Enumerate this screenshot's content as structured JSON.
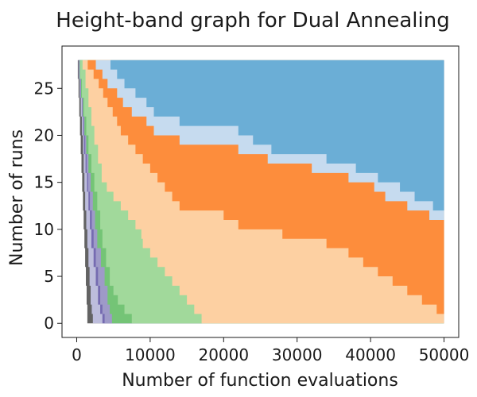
{
  "chart_data": {
    "type": "area",
    "title": "Height-band graph for Dual Annealing",
    "xlabel": "Number of function evaluations",
    "ylabel": "Number of runs",
    "xlim": [
      -2000,
      52000
    ],
    "ylim": [
      -1.5,
      29.5
    ],
    "xticks": [
      0,
      10000,
      20000,
      30000,
      40000,
      50000
    ],
    "yticks": [
      0,
      5,
      10,
      15,
      20,
      25
    ],
    "grid": false,
    "legend": "none",
    "bands": [
      {
        "color": "#636363",
        "boundary": [
          [
            0,
            28
          ],
          [
            150,
            26
          ],
          [
            250,
            24
          ],
          [
            350,
            22
          ],
          [
            450,
            20
          ],
          [
            550,
            18
          ],
          [
            650,
            16
          ],
          [
            750,
            14
          ],
          [
            850,
            12
          ],
          [
            950,
            10
          ],
          [
            1050,
            8
          ],
          [
            1150,
            6
          ],
          [
            1250,
            4
          ],
          [
            1350,
            2
          ],
          [
            1450,
            0
          ]
        ]
      },
      {
        "color": "#bdbddc",
        "boundary": [
          [
            0,
            28
          ],
          [
            250,
            26
          ],
          [
            400,
            24
          ],
          [
            550,
            22
          ],
          [
            700,
            20
          ],
          [
            850,
            18
          ],
          [
            950,
            16
          ],
          [
            1050,
            14
          ],
          [
            1150,
            12
          ],
          [
            1300,
            10
          ],
          [
            1450,
            8
          ],
          [
            1600,
            6
          ],
          [
            1750,
            4
          ],
          [
            1900,
            2
          ],
          [
            2050,
            1
          ],
          [
            2200,
            0
          ]
        ]
      },
      {
        "color": "#756bb1",
        "boundary": [
          [
            0,
            28
          ],
          [
            300,
            26
          ],
          [
            500,
            24
          ],
          [
            700,
            22
          ],
          [
            850,
            20
          ],
          [
            1000,
            18
          ],
          [
            1200,
            16
          ],
          [
            1400,
            14
          ],
          [
            1600,
            12
          ],
          [
            1800,
            10
          ],
          [
            2000,
            8
          ],
          [
            2300,
            6
          ],
          [
            2600,
            4
          ],
          [
            2900,
            2
          ],
          [
            3200,
            1
          ],
          [
            3500,
            0
          ]
        ]
      },
      {
        "color": "#9e9ac8",
        "boundary": [
          [
            0,
            28
          ],
          [
            350,
            26
          ],
          [
            550,
            24
          ],
          [
            750,
            22
          ],
          [
            950,
            20
          ],
          [
            1150,
            18
          ],
          [
            1350,
            16
          ],
          [
            1550,
            14
          ],
          [
            1800,
            12
          ],
          [
            2050,
            10
          ],
          [
            2300,
            8
          ],
          [
            2600,
            6
          ],
          [
            2900,
            4
          ],
          [
            3200,
            2
          ],
          [
            3500,
            1
          ],
          [
            3800,
            0
          ]
        ]
      },
      {
        "color": "#74c476",
        "boundary": [
          [
            0,
            28
          ],
          [
            400,
            26
          ],
          [
            600,
            24
          ],
          [
            850,
            22
          ],
          [
            1050,
            20
          ],
          [
            1300,
            18
          ],
          [
            1600,
            16
          ],
          [
            1900,
            14
          ],
          [
            2200,
            12
          ],
          [
            2500,
            10
          ],
          [
            2800,
            8
          ],
          [
            3300,
            6
          ],
          [
            3800,
            4
          ],
          [
            4200,
            2
          ],
          [
            4500,
            1
          ],
          [
            4800,
            0
          ]
        ]
      },
      {
        "color": "#a1d99b",
        "boundary": [
          [
            0,
            28
          ],
          [
            450,
            26
          ],
          [
            700,
            24
          ],
          [
            1000,
            22
          ],
          [
            1300,
            20
          ],
          [
            1600,
            18
          ],
          [
            2000,
            16
          ],
          [
            2400,
            14
          ],
          [
            2800,
            12
          ],
          [
            3200,
            10
          ],
          [
            3500,
            8
          ],
          [
            4000,
            6
          ],
          [
            4500,
            4
          ],
          [
            5000,
            3
          ],
          [
            5600,
            2
          ],
          [
            6500,
            1
          ],
          [
            7500,
            0
          ]
        ]
      },
      {
        "color": "#fdd0a2",
        "boundary": [
          [
            0,
            28
          ],
          [
            800,
            27
          ],
          [
            1200,
            25
          ],
          [
            1600,
            23
          ],
          [
            2000,
            21
          ],
          [
            2400,
            19
          ],
          [
            2900,
            17
          ],
          [
            3400,
            15
          ],
          [
            4100,
            14
          ],
          [
            5000,
            13
          ],
          [
            6000,
            12
          ],
          [
            7000,
            11
          ],
          [
            8000,
            10
          ],
          [
            8800,
            9
          ],
          [
            9000,
            8
          ],
          [
            10000,
            7
          ],
          [
            11000,
            6
          ],
          [
            12000,
            5
          ],
          [
            13000,
            4
          ],
          [
            14000,
            3
          ],
          [
            15000,
            2
          ],
          [
            16000,
            1
          ],
          [
            17000,
            0
          ]
        ]
      },
      {
        "color": "#fd8d3c",
        "boundary": [
          [
            0,
            28
          ],
          [
            1500,
            27
          ],
          [
            2300,
            26
          ],
          [
            3000,
            25
          ],
          [
            3600,
            24
          ],
          [
            4200,
            23
          ],
          [
            4900,
            22
          ],
          [
            5500,
            21
          ],
          [
            6000,
            20
          ],
          [
            7000,
            19
          ],
          [
            8000,
            18
          ],
          [
            9000,
            17
          ],
          [
            10000,
            16
          ],
          [
            11000,
            15
          ],
          [
            12000,
            14
          ],
          [
            13000,
            13
          ],
          [
            14000,
            12
          ],
          [
            20000,
            11
          ],
          [
            22000,
            10
          ],
          [
            28000,
            9
          ],
          [
            34000,
            8
          ],
          [
            37000,
            7
          ],
          [
            39000,
            6
          ],
          [
            41000,
            5
          ],
          [
            43000,
            4
          ],
          [
            45000,
            3
          ],
          [
            47000,
            2
          ],
          [
            49000,
            1
          ],
          [
            50000,
            0
          ]
        ]
      },
      {
        "color": "#c6dbef",
        "boundary": [
          [
            1500,
            28
          ],
          [
            2600,
            27
          ],
          [
            3500,
            26
          ],
          [
            4200,
            25
          ],
          [
            5500,
            24
          ],
          [
            6300,
            23
          ],
          [
            7500,
            22
          ],
          [
            9500,
            21
          ],
          [
            10500,
            20
          ],
          [
            14000,
            19
          ],
          [
            22000,
            18
          ],
          [
            26000,
            17
          ],
          [
            32000,
            16
          ],
          [
            37000,
            15
          ],
          [
            40500,
            14
          ],
          [
            42000,
            13
          ],
          [
            45000,
            12
          ],
          [
            48000,
            11
          ],
          [
            50000,
            10
          ]
        ]
      },
      {
        "color": "#6baed6",
        "boundary": [
          [
            1500,
            28
          ],
          [
            4600,
            27
          ],
          [
            5500,
            26
          ],
          [
            6500,
            25
          ],
          [
            8000,
            24
          ],
          [
            9500,
            23
          ],
          [
            10500,
            22
          ],
          [
            14000,
            21
          ],
          [
            22000,
            20
          ],
          [
            24000,
            19
          ],
          [
            26500,
            18
          ],
          [
            34000,
            17
          ],
          [
            38000,
            16
          ],
          [
            41000,
            15
          ],
          [
            44000,
            14
          ],
          [
            46000,
            13
          ],
          [
            48500,
            12
          ],
          [
            50000,
            11
          ]
        ]
      }
    ]
  }
}
